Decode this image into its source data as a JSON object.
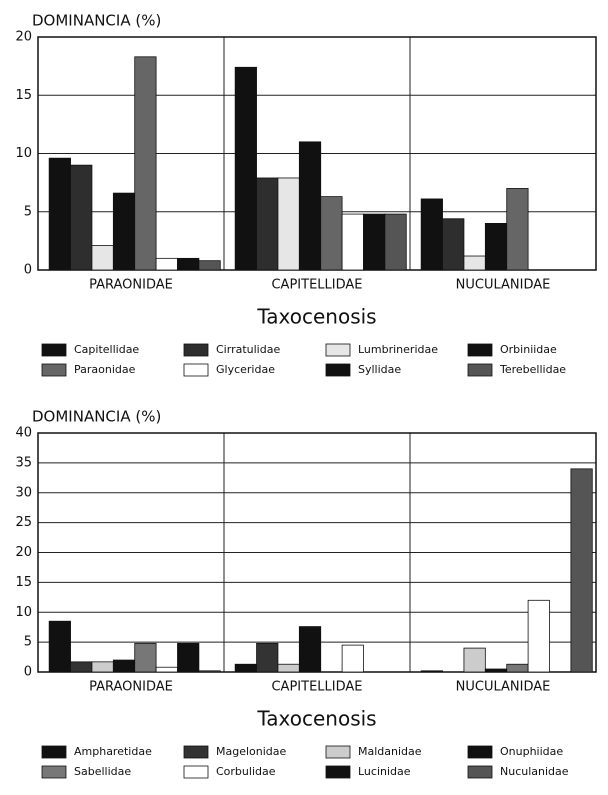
{
  "chart_data": [
    {
      "type": "bar",
      "y_label": "DOMINANCIA (%)",
      "x_label": "Taxocenosis",
      "categories": [
        "PARAONIDAE",
        "CAPITELLIDAE",
        "NUCULANIDAE"
      ],
      "ylim": [
        0,
        20
      ],
      "yticks": [
        0,
        5,
        10,
        15,
        20
      ],
      "grid": true,
      "series": [
        {
          "name": "Capitellidae",
          "color": "#111111",
          "values": [
            9.6,
            17.4,
            6.1
          ]
        },
        {
          "name": "Cirratulidae",
          "color": "#2e2e2e",
          "values": [
            9.0,
            7.9,
            4.4
          ]
        },
        {
          "name": "Lumbrineridae",
          "color": "#e6e6e6",
          "values": [
            2.1,
            7.9,
            1.2
          ]
        },
        {
          "name": "Orbiniidae",
          "color": "#111111",
          "values": [
            6.6,
            11.0,
            4.0
          ]
        },
        {
          "name": "Paraonidae",
          "color": "#666666",
          "values": [
            18.3,
            6.3,
            7.0
          ]
        },
        {
          "name": "Glyceridae",
          "color": "#ffffff",
          "values": [
            1.0,
            4.8,
            0
          ]
        },
        {
          "name": "Syllidae",
          "color": "#111111",
          "values": [
            1.0,
            4.8,
            0
          ]
        },
        {
          "name": "Terebellidae",
          "color": "#555555",
          "values": [
            0.8,
            4.8,
            0
          ]
        }
      ]
    },
    {
      "type": "bar",
      "y_label": "DOMINANCIA (%)",
      "x_label": "Taxocenosis",
      "categories": [
        "PARAONIDAE",
        "CAPITELLIDAE",
        "NUCULANIDAE"
      ],
      "ylim": [
        0,
        40
      ],
      "yticks": [
        0,
        5,
        10,
        15,
        20,
        25,
        30,
        35,
        40
      ],
      "grid": true,
      "series": [
        {
          "name": "Ampharetidae",
          "color": "#111111",
          "values": [
            8.5,
            1.3,
            0.2
          ]
        },
        {
          "name": "Magelonidae",
          "color": "#333333",
          "values": [
            1.7,
            4.8,
            0
          ]
        },
        {
          "name": "Maldanidae",
          "color": "#cccccc",
          "values": [
            1.7,
            1.3,
            4.0
          ]
        },
        {
          "name": "Onuphiidae",
          "color": "#111111",
          "values": [
            2.0,
            7.6,
            0.5
          ]
        },
        {
          "name": "Sabellidae",
          "color": "#777777",
          "values": [
            4.8,
            0,
            1.3
          ]
        },
        {
          "name": "Corbulidae",
          "color": "#ffffff",
          "values": [
            0.8,
            4.5,
            12.0
          ]
        },
        {
          "name": "Lucinidae",
          "color": "#111111",
          "values": [
            4.8,
            0,
            0
          ]
        },
        {
          "name": "Nuculanidae",
          "color": "#555555",
          "values": [
            0.2,
            0,
            34.0
          ]
        }
      ]
    }
  ]
}
